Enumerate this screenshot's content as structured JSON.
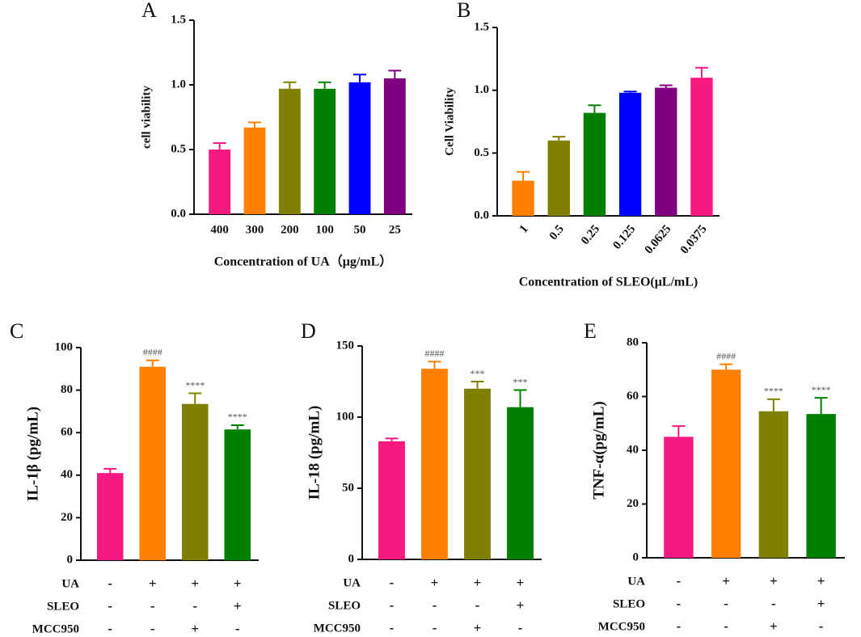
{
  "chart_data": [
    {
      "type": "bar",
      "label": "A",
      "ylabel": "cell viability",
      "xlabel": "Concentration of UA（μg/mL）",
      "categories": [
        "400",
        "300",
        "200",
        "100",
        "50",
        "25"
      ],
      "values": [
        0.5,
        0.67,
        0.97,
        0.97,
        1.02,
        1.05
      ],
      "errors": [
        0.05,
        0.04,
        0.05,
        0.05,
        0.06,
        0.06
      ],
      "colors": [
        "#f7197f",
        "#ff8000",
        "#808000",
        "#008000",
        "#0000ff",
        "#800080"
      ],
      "ylim": [
        0,
        1.5
      ],
      "yticks": [
        {
          "value": 0,
          "label": "0.0"
        },
        0.5,
        {
          "value": 1,
          "label": "1.0"
        },
        1.5
      ]
    },
    {
      "type": "bar",
      "label": "B",
      "ylabel": "Cell Viability",
      "xlabel": "Concentration of SLEO(μL/mL)",
      "categories": [
        "1",
        "0.5",
        "0.25",
        "0.125",
        "0.0625",
        "0.0375"
      ],
      "rotate_categories": true,
      "values": [
        0.28,
        0.6,
        0.82,
        0.98,
        1.02,
        1.1
      ],
      "errors": [
        0.07,
        0.03,
        0.06,
        0.01,
        0.02,
        0.08
      ],
      "colors": [
        "#ff8000",
        "#808000",
        "#008000",
        "#0000ff",
        "#800080",
        "#f7197f"
      ],
      "ylim": [
        0,
        1.5
      ],
      "yticks": [
        {
          "value": 0,
          "label": "0.0"
        },
        0.5,
        {
          "value": 1,
          "label": "1.0"
        },
        1.5
      ]
    },
    {
      "type": "bar",
      "label": "C",
      "ylabel": "IL-1β (pg/mL)",
      "values": [
        41,
        91,
        73.5,
        61.5
      ],
      "errors": [
        2,
        3,
        5,
        2
      ],
      "annotations": [
        null,
        "####",
        "****",
        "****"
      ],
      "colors": [
        "#f7197f",
        "#ff8000",
        "#808000",
        "#008000"
      ],
      "ylim": [
        0,
        100
      ],
      "yticks": [
        0,
        20,
        40,
        60,
        80,
        100
      ],
      "conditions": [
        {
          "name": "UA",
          "signs": [
            "-",
            "+",
            "+",
            "+"
          ]
        },
        {
          "name": "SLEO",
          "signs": [
            "-",
            "-",
            "-",
            "+"
          ]
        },
        {
          "name": "MCC950",
          "signs": [
            "-",
            "-",
            "+",
            "-"
          ]
        }
      ]
    },
    {
      "type": "bar",
      "label": "D",
      "ylabel": "IL-18 (pg/mL)",
      "values": [
        83,
        134,
        120,
        107
      ],
      "errors": [
        2,
        5,
        5,
        12
      ],
      "annotations": [
        null,
        "####",
        "***",
        "***"
      ],
      "colors": [
        "#f7197f",
        "#ff8000",
        "#808000",
        "#008000"
      ],
      "ylim": [
        0,
        150
      ],
      "yticks": [
        0,
        50,
        100,
        150
      ],
      "conditions": [
        {
          "name": "UA",
          "signs": [
            "-",
            "+",
            "+",
            "+"
          ]
        },
        {
          "name": "SLEO",
          "signs": [
            "-",
            "-",
            "-",
            "+"
          ]
        },
        {
          "name": "MCC950",
          "signs": [
            "-",
            "-",
            "+",
            "-"
          ]
        }
      ]
    },
    {
      "type": "bar",
      "label": "E",
      "ylabel": "TNF-α(pg/mL)",
      "values": [
        45,
        70,
        54.5,
        53.5
      ],
      "errors": [
        4,
        2,
        4.5,
        6
      ],
      "annotations": [
        null,
        "####",
        "****",
        "****"
      ],
      "colors": [
        "#f7197f",
        "#ff8000",
        "#808000",
        "#008000"
      ],
      "ylim": [
        0,
        80
      ],
      "yticks": [
        0,
        20,
        40,
        60,
        80
      ],
      "conditions": [
        {
          "name": "UA",
          "signs": [
            "-",
            "+",
            "+",
            "+"
          ]
        },
        {
          "name": "SLEO",
          "signs": [
            "-",
            "-",
            "-",
            "+"
          ]
        },
        {
          "name": "MCC950",
          "signs": [
            "-",
            "-",
            "+",
            "-"
          ]
        }
      ]
    }
  ]
}
